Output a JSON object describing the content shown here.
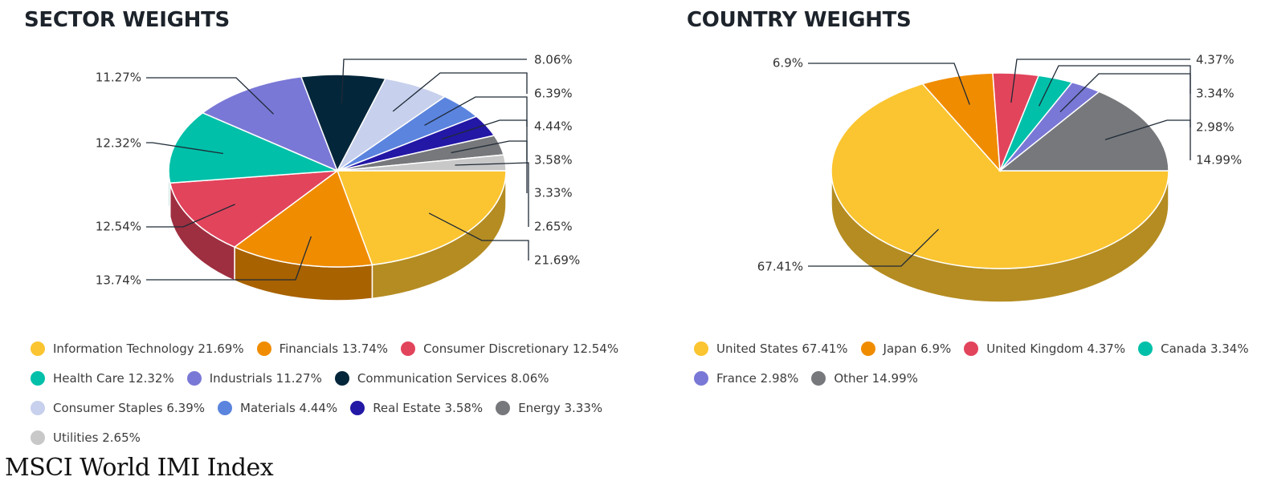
{
  "footer": {
    "caption": "MSCI World IMI Index"
  },
  "chart_data": [
    {
      "type": "pie",
      "title": "SECTOR WEIGHTS",
      "categories": [
        "Information Technology",
        "Financials",
        "Consumer Discretionary",
        "Health Care",
        "Industrials",
        "Communication Services",
        "Consumer Staples",
        "Materials",
        "Real Estate",
        "Energy",
        "Utilities"
      ],
      "values": [
        21.69,
        13.74,
        12.54,
        12.32,
        11.27,
        8.06,
        6.39,
        4.44,
        3.58,
        3.33,
        2.65
      ],
      "labels": [
        "21.69%",
        "13.74%",
        "12.54%",
        "12.32%",
        "11.27%",
        "8.06%",
        "6.39%",
        "4.44%",
        "3.58%",
        "3.33%",
        "2.65%"
      ],
      "legend": [
        "Information Technology 21.69%",
        "Financials 13.74%",
        "Consumer Discretionary 12.54%",
        "Health Care 12.32%",
        "Industrials 11.27%",
        "Communication Services 8.06%",
        "Consumer Staples 6.39%",
        "Materials 4.44%",
        "Real Estate 3.58%",
        "Energy 3.33%",
        "Utilities 2.65%"
      ],
      "colors": [
        "#fbc531",
        "#f08c00",
        "#e2445c",
        "#00c0a9",
        "#7a78d6",
        "#03263a",
        "#c7d0ec",
        "#5b84df",
        "#2317a6",
        "#76787b",
        "#c8c8c8"
      ],
      "side_colors": [
        "#b48c22",
        "#a86200",
        "#9e2f40",
        "#007f70",
        "#55549a",
        "#021a28",
        "#8b92a8",
        "#3e5c9e",
        "#180f74",
        "#525456",
        "#8c8c8c"
      ],
      "legend_placement": "bottom",
      "legend_rows": [
        [
          0,
          1,
          2
        ],
        [
          3,
          4,
          5
        ],
        [
          6,
          7,
          8,
          9
        ],
        [
          10
        ]
      ],
      "style": "3d"
    },
    {
      "type": "pie",
      "title": "COUNTRY WEIGHTS",
      "categories": [
        "United States",
        "Japan",
        "United Kingdom",
        "Canada",
        "France",
        "Other"
      ],
      "values": [
        67.41,
        6.9,
        4.37,
        3.34,
        2.98,
        14.99
      ],
      "labels": [
        "67.41%",
        "6.9%",
        "4.37%",
        "3.34%",
        "2.98%",
        "14.99%"
      ],
      "legend": [
        "United States 67.41%",
        "Japan 6.9%",
        "United Kingdom 4.37%",
        "Canada 3.34%",
        "France 2.98%",
        "Other 14.99%"
      ],
      "colors": [
        "#fbc531",
        "#f08c00",
        "#e2445c",
        "#00c0a9",
        "#7a78d6",
        "#76787b"
      ],
      "side_colors": [
        "#b48c22",
        "#a86200",
        "#9e2f40",
        "#007f70",
        "#55549a",
        "#525456"
      ],
      "legend_placement": "bottom",
      "legend_rows": [
        [
          0,
          1,
          2,
          3
        ],
        [
          4,
          5
        ]
      ],
      "style": "3d"
    }
  ]
}
